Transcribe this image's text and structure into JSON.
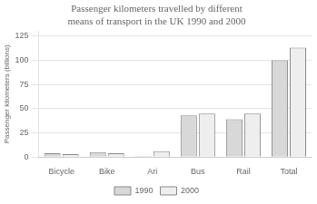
{
  "chart_data": {
    "type": "bar",
    "title": "Passenger kilometers travelled by different\nmeans of transport in the UK 1990 and 2000",
    "ylabel": "Passenger kilometers (billions)",
    "categories": [
      "Bicycle",
      "Bike",
      "Ari",
      "Bus",
      "Rail",
      "Total"
    ],
    "series": [
      {
        "name": "1990",
        "color": "#d8d8d8",
        "values": [
          4,
          5,
          1,
          43,
          39,
          100
        ]
      },
      {
        "name": "2000",
        "color": "#eeeeee",
        "values": [
          3,
          4,
          6,
          45,
          45,
          113
        ]
      }
    ],
    "ylim": [
      0,
      130
    ],
    "yticks": [
      0,
      25,
      50,
      75,
      100,
      125
    ],
    "grid": true,
    "legend": "bottom"
  }
}
